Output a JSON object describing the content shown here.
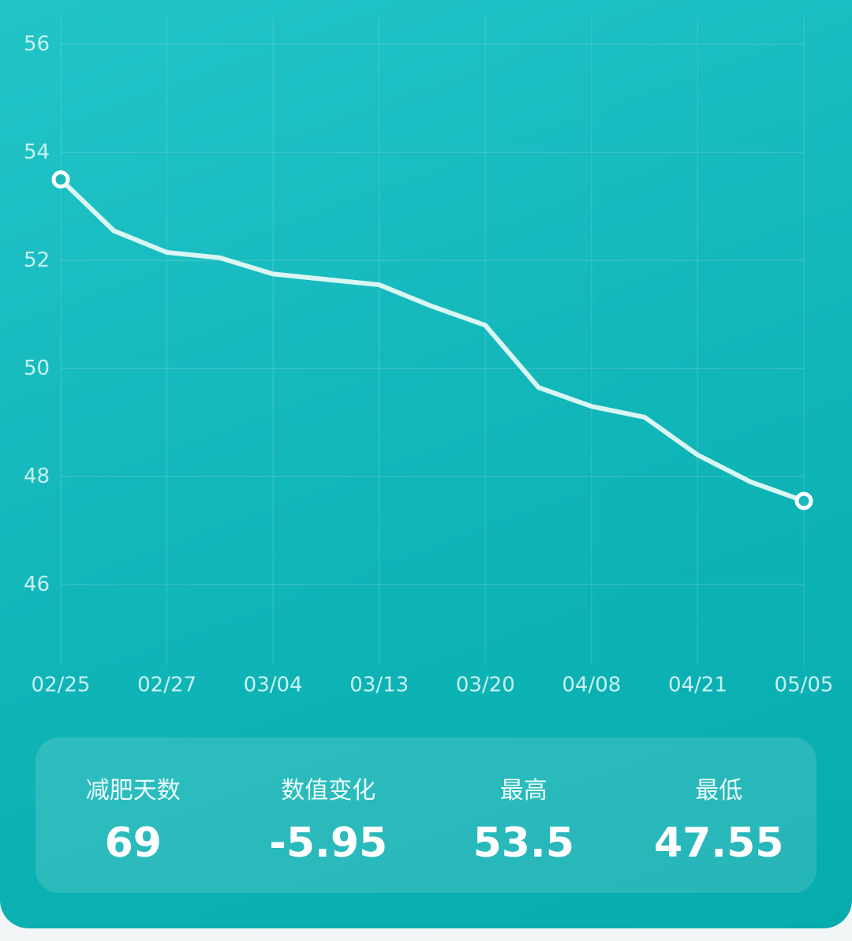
{
  "chart_data": {
    "type": "line",
    "categories": [
      "02/25",
      null,
      "02/27",
      null,
      "03/04",
      null,
      "03/13",
      null,
      "03/20",
      null,
      "04/08",
      null,
      "04/21",
      null,
      "05/05"
    ],
    "series": [
      {
        "color": "#d9f6f2",
        "values": [
          53.5,
          52.55,
          52.15,
          52.05,
          51.75,
          51.65,
          51.55,
          51.15,
          50.8,
          49.65,
          49.3,
          49.1,
          48.4,
          47.9,
          47.55
        ]
      }
    ],
    "ylim": [
      44.5,
      56.5
    ],
    "yticks": [
      46,
      48,
      50,
      52,
      54,
      56
    ],
    "grid": true
  },
  "stats": [
    {
      "label": "减肥天数",
      "value": 69
    },
    {
      "label": "数值变化",
      "value": -5.95
    },
    {
      "label": "最高",
      "value": 53.5
    },
    {
      "label": "最低",
      "value": 47.55
    }
  ]
}
